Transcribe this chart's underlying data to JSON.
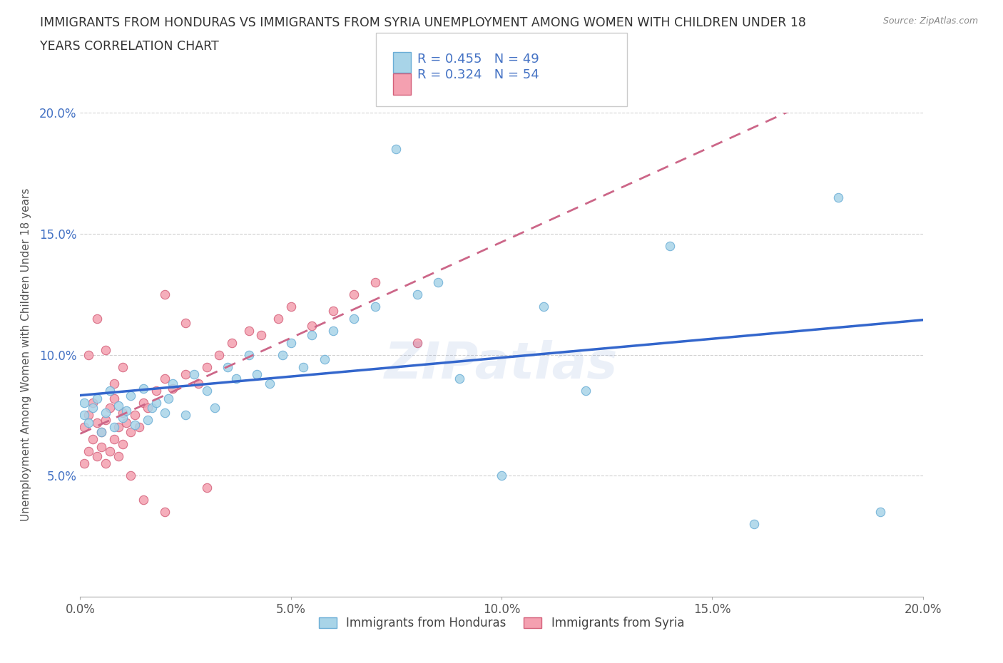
{
  "title_line1": "IMMIGRANTS FROM HONDURAS VS IMMIGRANTS FROM SYRIA UNEMPLOYMENT AMONG WOMEN WITH CHILDREN UNDER 18",
  "title_line2": "YEARS CORRELATION CHART",
  "source_text": "Source: ZipAtlas.com",
  "ylabel": "Unemployment Among Women with Children Under 18 years",
  "xlim": [
    0.0,
    0.2
  ],
  "ylim": [
    0.0,
    0.2
  ],
  "xtick_labels": [
    "0.0%",
    "5.0%",
    "10.0%",
    "15.0%",
    "20.0%"
  ],
  "xtick_vals": [
    0.0,
    0.05,
    0.1,
    0.15,
    0.2
  ],
  "ytick_labels": [
    "5.0%",
    "10.0%",
    "15.0%",
    "20.0%"
  ],
  "ytick_vals": [
    0.05,
    0.1,
    0.15,
    0.2
  ],
  "color_honduras": "#A8D4E8",
  "color_honduras_edge": "#6BAED6",
  "color_syria": "#F4A0B0",
  "color_syria_edge": "#D4607A",
  "color_line_honduras": "#3366CC",
  "color_line_syria": "#CC6688",
  "watermark_color": "#4472C4",
  "background_color": "#ffffff",
  "honduras_x": [
    0.001,
    0.001,
    0.002,
    0.003,
    0.004,
    0.005,
    0.006,
    0.007,
    0.008,
    0.009,
    0.01,
    0.011,
    0.012,
    0.013,
    0.015,
    0.016,
    0.017,
    0.018,
    0.02,
    0.021,
    0.022,
    0.025,
    0.027,
    0.03,
    0.032,
    0.035,
    0.037,
    0.04,
    0.042,
    0.045,
    0.048,
    0.05,
    0.053,
    0.055,
    0.058,
    0.06,
    0.065,
    0.07,
    0.075,
    0.08,
    0.085,
    0.09,
    0.1,
    0.11,
    0.12,
    0.14,
    0.16,
    0.18,
    0.19
  ],
  "honduras_y": [
    0.075,
    0.08,
    0.072,
    0.078,
    0.082,
    0.068,
    0.076,
    0.085,
    0.07,
    0.079,
    0.074,
    0.077,
    0.083,
    0.071,
    0.086,
    0.073,
    0.078,
    0.08,
    0.076,
    0.082,
    0.088,
    0.075,
    0.092,
    0.085,
    0.078,
    0.095,
    0.09,
    0.1,
    0.092,
    0.088,
    0.1,
    0.105,
    0.095,
    0.108,
    0.098,
    0.11,
    0.115,
    0.12,
    0.185,
    0.125,
    0.13,
    0.09,
    0.05,
    0.12,
    0.085,
    0.145,
    0.03,
    0.165,
    0.035
  ],
  "syria_x": [
    0.001,
    0.001,
    0.002,
    0.002,
    0.003,
    0.003,
    0.004,
    0.004,
    0.005,
    0.005,
    0.006,
    0.006,
    0.007,
    0.007,
    0.008,
    0.008,
    0.009,
    0.009,
    0.01,
    0.01,
    0.011,
    0.012,
    0.013,
    0.014,
    0.015,
    0.016,
    0.018,
    0.02,
    0.022,
    0.025,
    0.028,
    0.03,
    0.033,
    0.036,
    0.04,
    0.043,
    0.047,
    0.05,
    0.055,
    0.06,
    0.065,
    0.07,
    0.08,
    0.02,
    0.025,
    0.01,
    0.008,
    0.006,
    0.004,
    0.002,
    0.012,
    0.015,
    0.03,
    0.02
  ],
  "syria_y": [
    0.055,
    0.07,
    0.06,
    0.075,
    0.065,
    0.08,
    0.058,
    0.072,
    0.062,
    0.068,
    0.055,
    0.073,
    0.06,
    0.078,
    0.065,
    0.082,
    0.058,
    0.07,
    0.063,
    0.076,
    0.072,
    0.068,
    0.075,
    0.07,
    0.08,
    0.078,
    0.085,
    0.09,
    0.086,
    0.092,
    0.088,
    0.095,
    0.1,
    0.105,
    0.11,
    0.108,
    0.115,
    0.12,
    0.112,
    0.118,
    0.125,
    0.13,
    0.105,
    0.125,
    0.113,
    0.095,
    0.088,
    0.102,
    0.115,
    0.1,
    0.05,
    0.04,
    0.045,
    0.035
  ]
}
